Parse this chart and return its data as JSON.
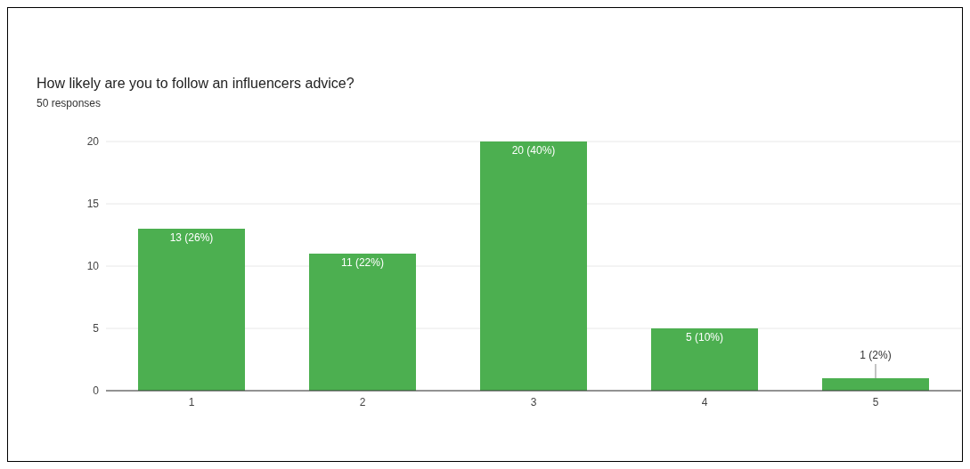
{
  "chart_data": {
    "type": "bar",
    "title": "How likely are you to follow an influencers advice?",
    "subtitle": "50 responses",
    "categories": [
      "1",
      "2",
      "3",
      "4",
      "5"
    ],
    "values": [
      13,
      11,
      20,
      5,
      1
    ],
    "value_labels": [
      "13 (26%)",
      "11 (22%)",
      "20 (40%)",
      "5 (10%)",
      "1 (2%)"
    ],
    "color": "#4caf50",
    "ylim": [
      0,
      20
    ],
    "yticks": [
      0,
      5,
      10,
      15,
      20
    ],
    "grid": "y"
  }
}
